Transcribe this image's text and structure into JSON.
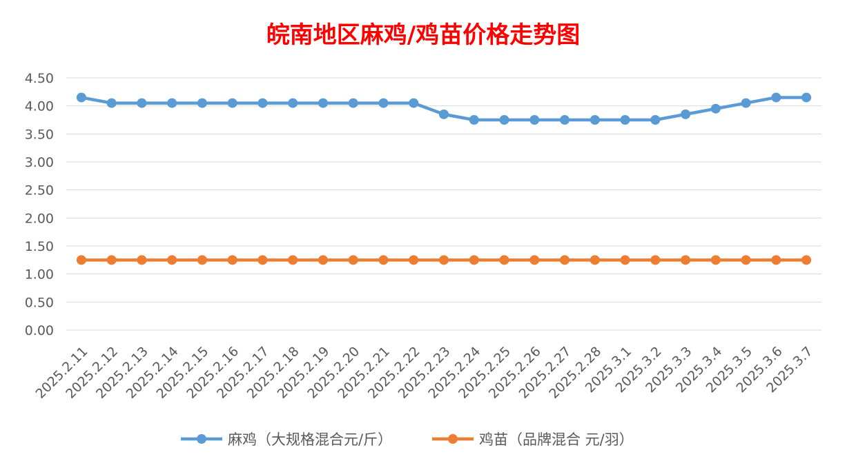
{
  "chart_data": {
    "type": "line",
    "title": "皖南地区麻鸡/鸡苗价格走势图",
    "categories": [
      "2025.2.11",
      "2025.2.12",
      "2025.2.13",
      "2025.2.14",
      "2025.2.15",
      "2025.2.16",
      "2025.2.17",
      "2025.2.18",
      "2025.2.19",
      "2025.2.20",
      "2025.2.21",
      "2025.2.22",
      "2025.2.23",
      "2025.2.24",
      "2025.2.25",
      "2025.2.26",
      "2025.2.27",
      "2025.2.28",
      "2025.3.1",
      "2025.3.2",
      "2025.3.3",
      "2025.3.4",
      "2025.3.5",
      "2025.3.6",
      "2025.3.7"
    ],
    "y_ticks": [
      "0.00",
      "0.50",
      "1.00",
      "1.50",
      "2.00",
      "2.50",
      "3.00",
      "3.50",
      "4.00",
      "4.50"
    ],
    "ylim": [
      0,
      4.5
    ],
    "grid": true,
    "legend_position": "bottom",
    "series": [
      {
        "name": "麻鸡（大规格混合元/斤）",
        "color": "#5B9BD5",
        "values": [
          4.15,
          4.05,
          4.05,
          4.05,
          4.05,
          4.05,
          4.05,
          4.05,
          4.05,
          4.05,
          4.05,
          4.05,
          3.85,
          3.75,
          3.75,
          3.75,
          3.75,
          3.75,
          3.75,
          3.75,
          3.85,
          3.95,
          4.05,
          4.15,
          4.15
        ]
      },
      {
        "name": "鸡苗（品牌混合 元/羽）",
        "color": "#ED7D31",
        "values": [
          1.25,
          1.25,
          1.25,
          1.25,
          1.25,
          1.25,
          1.25,
          1.25,
          1.25,
          1.25,
          1.25,
          1.25,
          1.25,
          1.25,
          1.25,
          1.25,
          1.25,
          1.25,
          1.25,
          1.25,
          1.25,
          1.25,
          1.25,
          1.25,
          1.25
        ]
      }
    ],
    "title_color": "#FF0000"
  }
}
